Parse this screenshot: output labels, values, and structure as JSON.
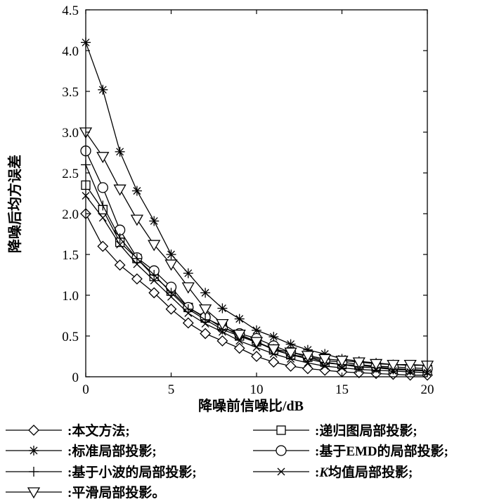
{
  "chart_data": {
    "type": "line",
    "title": "",
    "xlabel": "降噪前信噪比/dB",
    "ylabel": "降噪后均方误差",
    "xlim": [
      0,
      20
    ],
    "ylim": [
      0,
      4.5
    ],
    "xticks": [
      0,
      5,
      10,
      15,
      20
    ],
    "yticks": [
      0,
      0.5,
      1.0,
      1.5,
      2.0,
      2.5,
      3.0,
      3.5,
      4.0,
      4.5
    ],
    "xtick_labels": [
      "0",
      "5",
      "10",
      "15",
      "20"
    ],
    "ytick_labels": [
      "0",
      "0.5",
      "1.0",
      "1.5",
      "2.0",
      "2.5",
      "3.0",
      "3.5",
      "4.0",
      "4.5"
    ],
    "grid": false,
    "x": [
      0,
      1,
      2,
      3,
      4,
      5,
      6,
      7,
      8,
      9,
      10,
      11,
      12,
      13,
      14,
      15,
      16,
      17,
      18,
      19,
      20
    ],
    "series": [
      {
        "name": "本文方法;",
        "marker": "diamond",
        "values": [
          2.0,
          1.6,
          1.37,
          1.2,
          1.03,
          0.83,
          0.66,
          0.53,
          0.44,
          0.35,
          0.25,
          0.18,
          0.13,
          0.1,
          0.08,
          0.06,
          0.05,
          0.04,
          0.03,
          0.02,
          0.02
        ]
      },
      {
        "name": "递归图局部投影;",
        "marker": "square",
        "values": [
          2.35,
          2.05,
          1.65,
          1.45,
          1.23,
          1.05,
          0.85,
          0.72,
          0.62,
          0.5,
          0.43,
          0.33,
          0.27,
          0.24,
          0.18,
          0.15,
          0.14,
          0.12,
          0.1,
          0.09,
          0.08
        ]
      },
      {
        "name": "标准局部投影;",
        "marker": "star",
        "values": [
          4.1,
          3.52,
          2.76,
          2.28,
          1.91,
          1.5,
          1.27,
          1.03,
          0.84,
          0.71,
          0.57,
          0.49,
          0.4,
          0.33,
          0.28,
          0.22,
          0.19,
          0.17,
          0.15,
          0.14,
          0.14
        ]
      },
      {
        "name": "基于EMD的局部投影;",
        "marker": "circle",
        "values": [
          2.77,
          2.32,
          1.8,
          1.46,
          1.3,
          1.1,
          0.85,
          0.73,
          0.6,
          0.53,
          0.47,
          0.38,
          0.3,
          0.25,
          0.2,
          0.18,
          0.15,
          0.13,
          0.12,
          0.11,
          0.1
        ]
      },
      {
        "name": "基于小波的局部投影;",
        "marker": "plus",
        "values": [
          2.6,
          2.1,
          1.7,
          1.45,
          1.25,
          1.03,
          0.83,
          0.7,
          0.58,
          0.5,
          0.42,
          0.34,
          0.27,
          0.22,
          0.17,
          0.15,
          0.12,
          0.11,
          0.09,
          0.08,
          0.07
        ]
      },
      {
        "name": "K均值局部投影;",
        "marker": "x",
        "values": [
          2.22,
          1.95,
          1.62,
          1.38,
          1.18,
          0.98,
          0.78,
          0.65,
          0.55,
          0.44,
          0.36,
          0.28,
          0.22,
          0.17,
          0.13,
          0.11,
          0.09,
          0.08,
          0.07,
          0.06,
          0.05
        ]
      },
      {
        "name": "平滑局部投影。",
        "marker": "triangle-down",
        "values": [
          3.0,
          2.7,
          2.3,
          1.93,
          1.62,
          1.38,
          1.1,
          0.83,
          0.65,
          0.52,
          0.43,
          0.34,
          0.3,
          0.26,
          0.22,
          0.2,
          0.18,
          0.16,
          0.15,
          0.15,
          0.14
        ]
      }
    ],
    "legend": {
      "placement": "bottom",
      "separator": ":",
      "entries": [
        {
          "series": 0,
          "label": "本文方法;"
        },
        {
          "series": 1,
          "label": "递归图局部投影;"
        },
        {
          "series": 2,
          "label": "标准局部投影;"
        },
        {
          "series": 3,
          "label": "基于EMD的局部投影;"
        },
        {
          "series": 4,
          "label": "基于小波的局部投影;"
        },
        {
          "series": 5,
          "italic_prefix": "K",
          "label": "均值局部投影;"
        },
        {
          "series": 6,
          "label": "平滑局部投影。"
        }
      ]
    }
  }
}
